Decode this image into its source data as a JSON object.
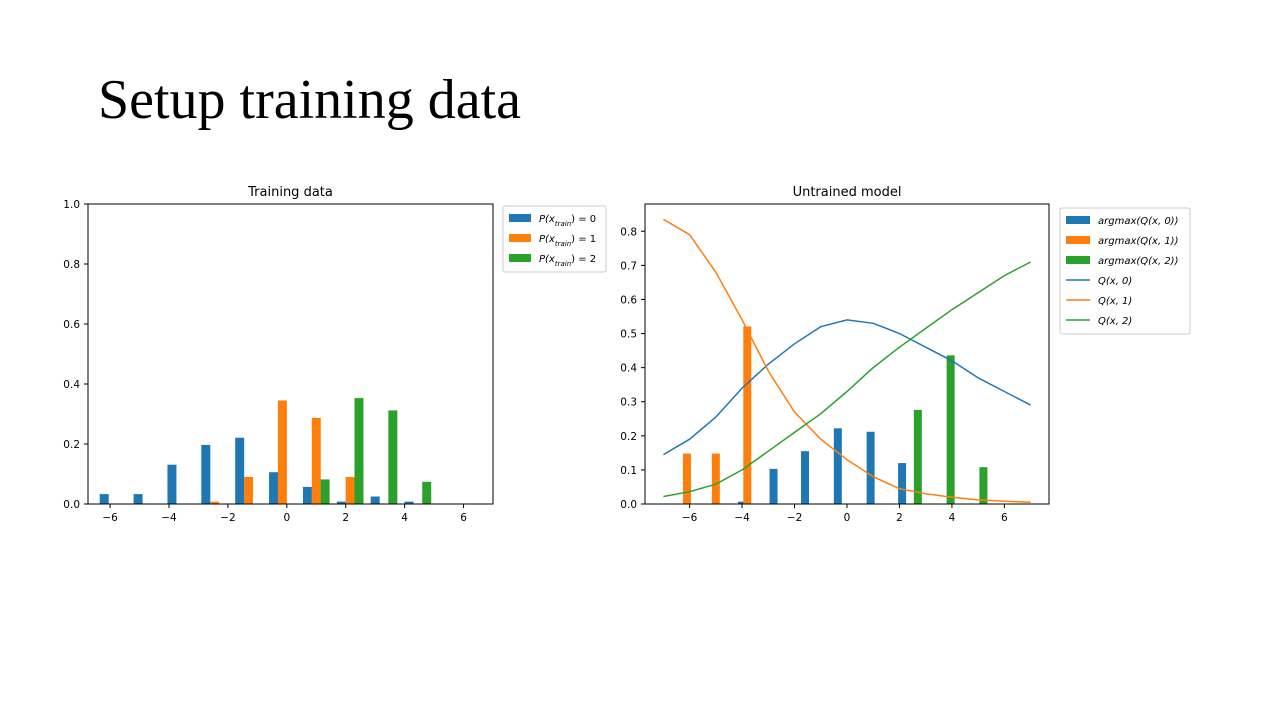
{
  "slide": {
    "title": "Setup training data"
  },
  "colors": {
    "c0": "#1f77b4",
    "c1": "#ff7f0e",
    "c2": "#2ca02c"
  },
  "chart_data": [
    {
      "type": "bar",
      "title": "Training data",
      "xlabel": "",
      "ylabel": "",
      "xlim": [
        -6.75,
        7
      ],
      "ylim": [
        0,
        1.0
      ],
      "xticks": [
        -6,
        -4,
        -2,
        0,
        2,
        4,
        6
      ],
      "xtick_labels": [
        "−6",
        "−4",
        "−2",
        "0",
        "2",
        "4",
        "6"
      ],
      "yticks": [
        0,
        0.2,
        0.4,
        0.6,
        0.8,
        1.0
      ],
      "ytick_labels": [
        "0.0",
        "0.2",
        "0.4",
        "0.6",
        "0.8",
        "1.0"
      ],
      "legend_position": "outside-top-right",
      "bars": [
        {
          "name": "P(x_train) = 0",
          "color": "#1f77b4",
          "x": [
            -6.2,
            -5.05,
            -3.9,
            -2.75,
            -1.6,
            -0.45,
            0.7,
            1.85,
            3.0,
            4.15
          ],
          "values": [
            0.033,
            0.033,
            0.131,
            0.197,
            0.221,
            0.106,
            0.057,
            0.008,
            0.025,
            0.008
          ]
        },
        {
          "name": "P(x_train) = 1",
          "color": "#ff7f0e",
          "x": [
            -2.45,
            -1.3,
            -0.15,
            1.0,
            2.15
          ],
          "values": [
            0.008,
            0.09,
            0.345,
            0.287,
            0.09
          ]
        },
        {
          "name": "P(x_train) = 2",
          "color": "#2ca02c",
          "x": [
            1.3,
            2.45,
            3.6,
            4.75
          ],
          "values": [
            0.082,
            0.353,
            0.312,
            0.074
          ]
        }
      ],
      "legend_items": [
        {
          "label_main": "P(x",
          "label_sub": "train",
          "label_rest": ") = 0",
          "color": "#1f77b4",
          "kind": "bar"
        },
        {
          "label_main": "P(x",
          "label_sub": "train",
          "label_rest": ") = 1",
          "color": "#ff7f0e",
          "kind": "bar"
        },
        {
          "label_main": "P(x",
          "label_sub": "train",
          "label_rest": ") = 2",
          "color": "#2ca02c",
          "kind": "bar"
        }
      ]
    },
    {
      "type": "bar+line",
      "title": "Untrained model",
      "xlabel": "",
      "ylabel": "",
      "xlim": [
        -7.7,
        7.7
      ],
      "ylim": [
        0,
        0.88
      ],
      "xticks": [
        -6,
        -4,
        -2,
        0,
        2,
        4,
        6
      ],
      "xtick_labels": [
        "−6",
        "−4",
        "−2",
        "0",
        "2",
        "4",
        "6"
      ],
      "yticks": [
        0,
        0.1,
        0.2,
        0.3,
        0.4,
        0.5,
        0.6,
        0.7,
        0.8
      ],
      "ytick_labels": [
        "0.0",
        "0.1",
        "0.2",
        "0.3",
        "0.4",
        "0.5",
        "0.6",
        "0.7",
        "0.8"
      ],
      "legend_position": "outside-top-right",
      "bars": [
        {
          "name": "argmax(Q(x, 0))",
          "color": "#1f77b4",
          "x": [
            -4.0,
            -2.8,
            -1.6,
            -0.35,
            0.9,
            2.1
          ],
          "values": [
            0.007,
            0.103,
            0.155,
            0.222,
            0.212,
            0.12
          ]
        },
        {
          "name": "argmax(Q(x, 1))",
          "color": "#ff7f0e",
          "x": [
            -6.1,
            -5.0,
            -3.8
          ],
          "values": [
            0.148,
            0.148,
            0.521
          ]
        },
        {
          "name": "argmax(Q(x, 2))",
          "color": "#2ca02c",
          "x": [
            2.7,
            3.95,
            5.2
          ],
          "values": [
            0.276,
            0.436,
            0.108
          ]
        }
      ],
      "series": [
        {
          "name": "Q(x, 0)",
          "color": "#1f77b4",
          "x": [
            -7,
            -6,
            -5,
            -4,
            -3,
            -2,
            -1,
            0,
            1,
            2,
            3,
            4,
            5,
            6,
            7
          ],
          "values": [
            0.145,
            0.19,
            0.255,
            0.34,
            0.41,
            0.47,
            0.52,
            0.54,
            0.53,
            0.5,
            0.46,
            0.42,
            0.37,
            0.33,
            0.29
          ]
        },
        {
          "name": "Q(x, 1)",
          "color": "#ff7f0e",
          "x": [
            -7,
            -6,
            -5,
            -4,
            -3,
            -2,
            -1,
            0,
            1,
            2,
            3,
            4,
            5,
            6,
            7
          ],
          "values": [
            0.835,
            0.79,
            0.68,
            0.54,
            0.39,
            0.27,
            0.19,
            0.13,
            0.08,
            0.045,
            0.03,
            0.02,
            0.012,
            0.008,
            0.005
          ]
        },
        {
          "name": "Q(x, 2)",
          "color": "#2ca02c",
          "x": [
            -7,
            -6,
            -5,
            -4,
            -3,
            -2,
            -1,
            0,
            1,
            2,
            3,
            4,
            5,
            6,
            7
          ],
          "values": [
            0.022,
            0.036,
            0.058,
            0.1,
            0.155,
            0.21,
            0.265,
            0.33,
            0.4,
            0.46,
            0.515,
            0.57,
            0.62,
            0.67,
            0.71
          ]
        }
      ],
      "legend_items": [
        {
          "label_main": "argmax(Q(x, 0))",
          "color": "#1f77b4",
          "kind": "bar"
        },
        {
          "label_main": "argmax(Q(x, 1))",
          "color": "#ff7f0e",
          "kind": "bar"
        },
        {
          "label_main": "argmax(Q(x, 2))",
          "color": "#2ca02c",
          "kind": "bar"
        },
        {
          "label_main": "Q(x, 0)",
          "color": "#1f77b4",
          "kind": "line"
        },
        {
          "label_main": "Q(x, 1)",
          "color": "#ff7f0e",
          "kind": "line"
        },
        {
          "label_main": "Q(x, 2)",
          "color": "#2ca02c",
          "kind": "line"
        }
      ]
    }
  ]
}
